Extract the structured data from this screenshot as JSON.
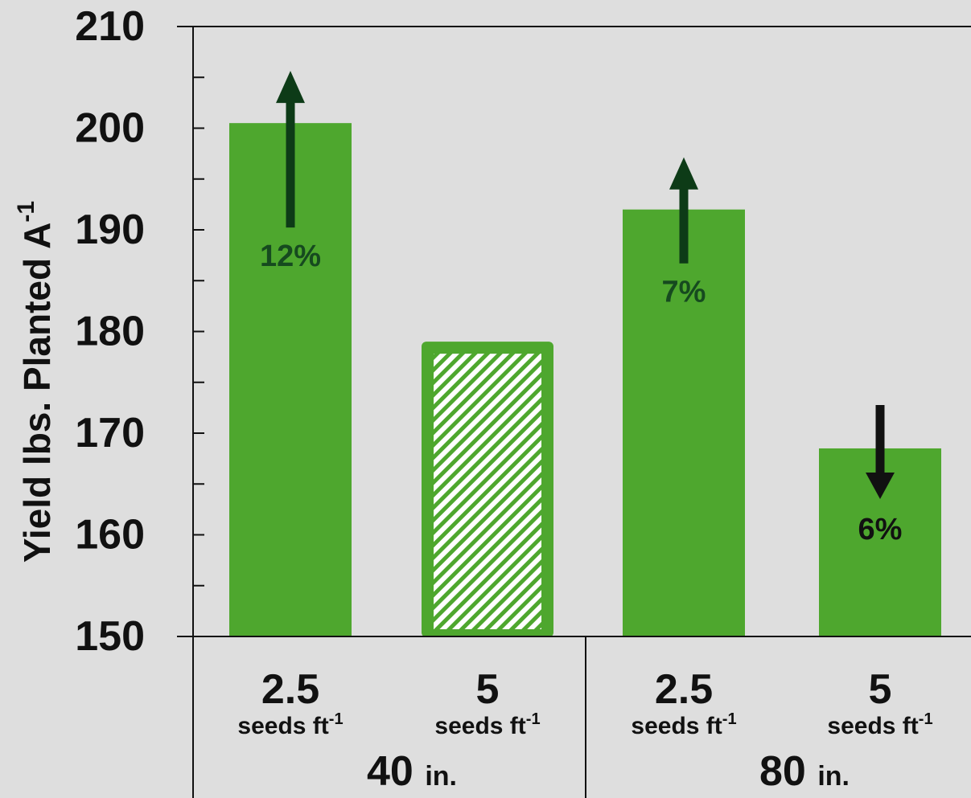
{
  "chart_data": {
    "type": "bar",
    "ylabel_main": "Yield lbs. Planted A",
    "ylabel_sup": "-1",
    "ylim": [
      150,
      210
    ],
    "y_ticks": [
      "150",
      "160",
      "170",
      "180",
      "190",
      "200",
      "210"
    ],
    "grid": false,
    "categories": [
      {
        "rate": "2.5",
        "unit": "seeds ft",
        "unit_sup": "-1",
        "spacing": "40",
        "value": 200.5,
        "hatched": false,
        "change": {
          "label": "12%",
          "direction": "up"
        }
      },
      {
        "rate": "5",
        "unit": "seeds ft",
        "unit_sup": "-1",
        "spacing": "40",
        "value": 179,
        "hatched": true,
        "change": null
      },
      {
        "rate": "2.5",
        "unit": "seeds ft",
        "unit_sup": "-1",
        "spacing": "80",
        "value": 192,
        "hatched": false,
        "change": {
          "label": "7%",
          "direction": "up"
        }
      },
      {
        "rate": "5",
        "unit": "seeds ft",
        "unit_sup": "-1",
        "spacing": "80",
        "value": 168.5,
        "hatched": false,
        "change": {
          "label": "6%",
          "direction": "down"
        }
      }
    ],
    "groups": [
      {
        "value": "40",
        "unit": "in."
      },
      {
        "value": "80",
        "unit": "in."
      }
    ],
    "colors": {
      "bar": "#4ea72e",
      "hatch_bg": "#ffffff",
      "up_arrow": "#0d3b17",
      "down_arrow": "#111111",
      "up_label": "#164a1f",
      "down_label": "#111111",
      "axis": "#111111",
      "background": "#dedede"
    }
  }
}
